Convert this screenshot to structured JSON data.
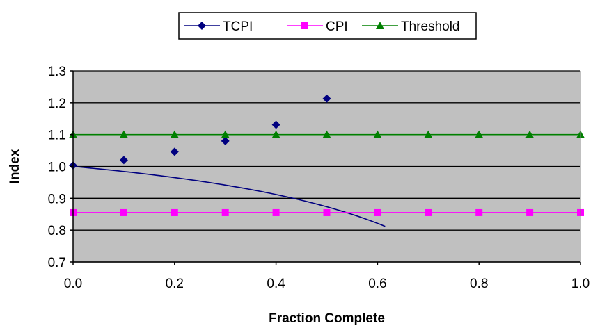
{
  "chart_data": {
    "type": "line",
    "title": "",
    "xlabel": "Fraction Complete",
    "ylabel": "Index",
    "xlim": [
      0.0,
      1.0
    ],
    "ylim": [
      0.7,
      1.3
    ],
    "xticks": [
      0.0,
      0.2,
      0.4,
      0.6,
      0.8,
      1.0
    ],
    "xtick_labels": [
      "0.0",
      "0.2",
      "0.4",
      "0.6",
      "0.8",
      "1.0"
    ],
    "yticks": [
      0.7,
      0.8,
      0.9,
      1.0,
      1.1,
      1.2,
      1.3
    ],
    "ytick_labels": [
      "0.7",
      "0.8",
      "0.9",
      "1.0",
      "1.1",
      "1.2",
      "1.3"
    ],
    "grid": "horizontal",
    "plot_background": "#c0c0c0",
    "legend_position": "top-center",
    "cpi": 0.855,
    "series": [
      {
        "name": "TCPI",
        "color": "#000080",
        "marker": "diamond",
        "x": [
          0.0,
          0.1,
          0.2,
          0.3,
          0.4,
          0.5
        ],
        "values": [
          1.003,
          1.02,
          1.046,
          1.08,
          1.131,
          1.213
        ]
      },
      {
        "name": "CPI",
        "color": "#ff00ff",
        "marker": "square",
        "x": [
          0.0,
          0.1,
          0.2,
          0.3,
          0.4,
          0.5,
          0.6,
          0.7,
          0.8,
          0.9,
          1.0
        ],
        "values": [
          0.855,
          0.855,
          0.855,
          0.855,
          0.855,
          0.855,
          0.855,
          0.855,
          0.855,
          0.855,
          0.855
        ]
      },
      {
        "name": "Threshold",
        "color": "#008000",
        "marker": "triangle",
        "x": [
          0.0,
          0.1,
          0.2,
          0.3,
          0.4,
          0.5,
          0.6,
          0.7,
          0.8,
          0.9,
          1.0
        ],
        "values": [
          1.1,
          1.1,
          1.1,
          1.1,
          1.1,
          1.1,
          1.1,
          1.1,
          1.1,
          1.1,
          1.1
        ]
      }
    ]
  }
}
